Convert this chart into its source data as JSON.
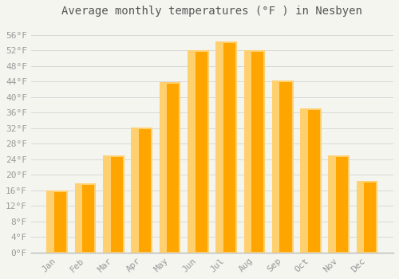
{
  "title": "Average monthly temperatures (°F ) in Nesbyen",
  "months": [
    "Jan",
    "Feb",
    "Mar",
    "Apr",
    "May",
    "Jun",
    "Jul",
    "Aug",
    "Sep",
    "Oct",
    "Nov",
    "Dec"
  ],
  "values": [
    15.8,
    17.6,
    24.8,
    32.0,
    43.7,
    51.8,
    54.0,
    51.8,
    44.1,
    36.9,
    24.8,
    18.3
  ],
  "bar_color": "#FFA500",
  "bar_color_light": "#FFD070",
  "background_color": "#F5F5F0",
  "grid_color": "#D8D8D8",
  "ytick_labels": [
    "0°F",
    "4°F",
    "8°F",
    "12°F",
    "16°F",
    "20°F",
    "24°F",
    "28°F",
    "32°F",
    "36°F",
    "40°F",
    "44°F",
    "48°F",
    "52°F",
    "56°F"
  ],
  "ytick_values": [
    0,
    4,
    8,
    12,
    16,
    20,
    24,
    28,
    32,
    36,
    40,
    44,
    48,
    52,
    56
  ],
  "ylim": [
    0,
    59
  ],
  "title_fontsize": 10,
  "tick_fontsize": 8,
  "font_family": "monospace",
  "tick_color": "#999999",
  "title_color": "#555555",
  "spine_color": "#BBBBBB"
}
